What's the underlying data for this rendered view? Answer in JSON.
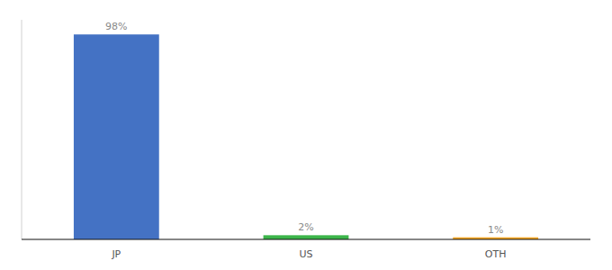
{
  "chart_data": {
    "type": "bar",
    "categories": [
      "JP",
      "US",
      "OTH"
    ],
    "values": [
      98,
      2,
      1
    ],
    "value_labels": [
      "98%",
      "2%",
      "1%"
    ],
    "colors": [
      "#4472c4",
      "#3cb54a",
      "#f5a623"
    ],
    "ylim": [
      0,
      105
    ],
    "data_labels": true,
    "tick_labels": "x",
    "grid": false
  }
}
